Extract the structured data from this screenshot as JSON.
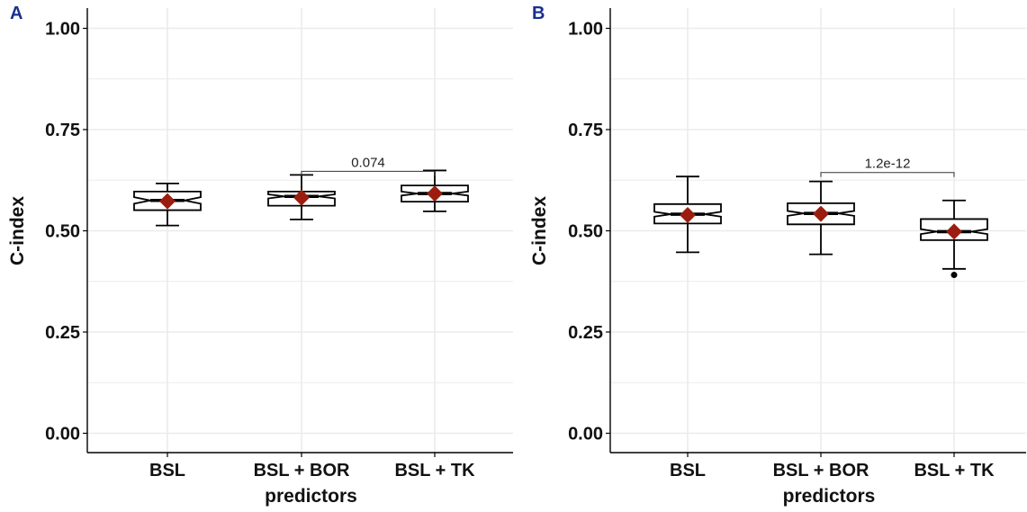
{
  "colors": {
    "panel_letter": "#1a2f8f",
    "mean_marker": "#9b1d10",
    "grid": "#ebebeb",
    "box_fill": "#ffffff",
    "ink": "#000000"
  },
  "chart_data": [
    {
      "type": "box",
      "panel_label": "A",
      "categories": [
        "BSL",
        "BSL + BOR",
        "BSL + TK"
      ],
      "xlabel": "predictors",
      "ylabel": "C-index",
      "ylim": [
        0,
        1.05
      ],
      "yticks": [
        "0.00",
        "0.25",
        "0.50",
        "0.75",
        "1.00"
      ],
      "grid": true,
      "boxes": [
        {
          "min": 0.513,
          "q1": 0.551,
          "median": 0.575,
          "q3": 0.597,
          "max": 0.617,
          "notch_low": 0.567,
          "notch_high": 0.583,
          "mean": 0.573,
          "outliers": []
        },
        {
          "min": 0.528,
          "q1": 0.562,
          "median": 0.585,
          "q3": 0.597,
          "max": 0.638,
          "notch_low": 0.58,
          "notch_high": 0.59,
          "mean": 0.582,
          "outliers": []
        },
        {
          "min": 0.548,
          "q1": 0.572,
          "median": 0.592,
          "q3": 0.612,
          "max": 0.649,
          "notch_low": 0.587,
          "notch_high": 0.597,
          "mean": 0.592,
          "outliers": []
        }
      ],
      "comparisons": [
        {
          "from": 1,
          "to": 2,
          "label": "0.074",
          "y": 0.647
        }
      ]
    },
    {
      "type": "box",
      "panel_label": "B",
      "categories": [
        "BSL",
        "BSL + BOR",
        "BSL + TK"
      ],
      "xlabel": "predictors",
      "ylabel": "C-index",
      "ylim": [
        0,
        1.05
      ],
      "yticks": [
        "0.00",
        "0.25",
        "0.50",
        "0.75",
        "1.00"
      ],
      "grid": true,
      "boxes": [
        {
          "min": 0.447,
          "q1": 0.518,
          "median": 0.541,
          "q3": 0.566,
          "max": 0.634,
          "notch_low": 0.535,
          "notch_high": 0.547,
          "mean": 0.539,
          "outliers": []
        },
        {
          "min": 0.442,
          "q1": 0.516,
          "median": 0.543,
          "q3": 0.568,
          "max": 0.622,
          "notch_low": 0.537,
          "notch_high": 0.549,
          "mean": 0.542,
          "outliers": []
        },
        {
          "min": 0.406,
          "q1": 0.477,
          "median": 0.498,
          "q3": 0.529,
          "max": 0.575,
          "notch_low": 0.492,
          "notch_high": 0.504,
          "mean": 0.498,
          "outliers": [
            0.391
          ]
        }
      ],
      "comparisons": [
        {
          "from": 1,
          "to": 2,
          "label": "1.2e-12",
          "y": 0.644
        }
      ]
    }
  ]
}
